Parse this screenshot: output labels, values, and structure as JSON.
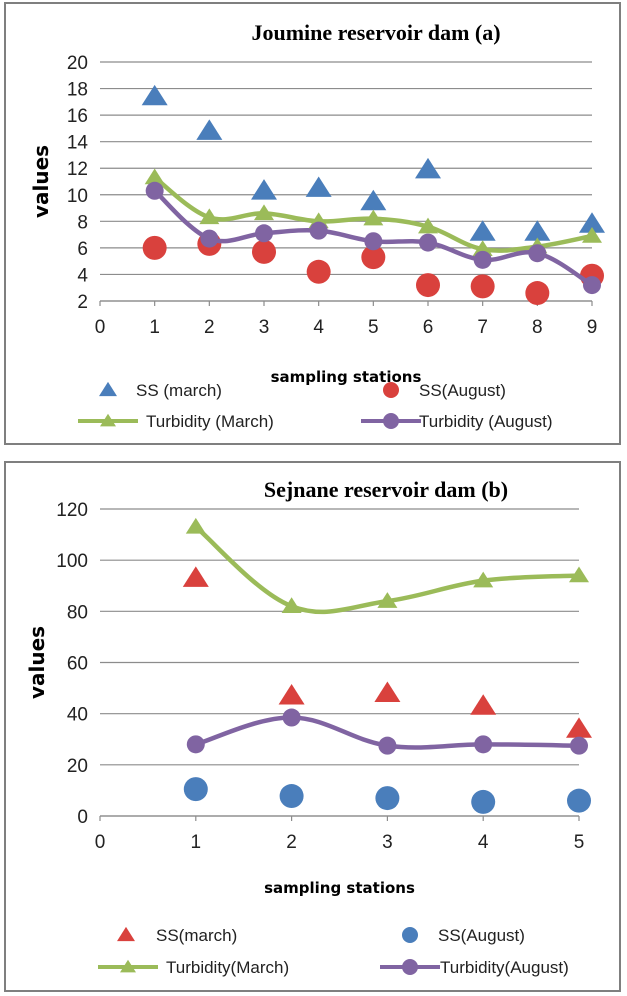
{
  "chart_data": [
    {
      "type": "scatter",
      "title": "Joumine reservoir dam (a)",
      "xlabel": "sampling stations",
      "ylabel": "values",
      "xlim": [
        0,
        9
      ],
      "ylim": [
        2,
        20
      ],
      "yticks": [
        2,
        4,
        6,
        8,
        10,
        12,
        14,
        16,
        18,
        20
      ],
      "xticks": [
        0,
        1,
        2,
        3,
        4,
        5,
        6,
        7,
        8,
        9
      ],
      "grid": "horizontal",
      "legend_position": "bottom",
      "x": [
        1,
        2,
        3,
        4,
        5,
        6,
        7,
        8,
        9
      ],
      "series": [
        {
          "name": "SS (march)",
          "kind": "markers",
          "marker": "triangle",
          "color": "#4a7ebb",
          "values": [
            17.4,
            14.8,
            10.3,
            10.5,
            9.5,
            11.9,
            7.2,
            7.2,
            7.8
          ]
        },
        {
          "name": "SS(August)",
          "kind": "markers",
          "marker": "circle",
          "color": "#d9413d",
          "values": [
            6.0,
            6.3,
            5.7,
            4.2,
            5.3,
            3.2,
            3.1,
            2.6,
            3.9
          ]
        },
        {
          "name": "Turbidity (March)",
          "kind": "line-markers",
          "marker": "triangle",
          "color": "#9bbb59",
          "values": [
            11.3,
            8.3,
            8.6,
            8.0,
            8.2,
            7.6,
            5.9,
            6.1,
            6.9
          ]
        },
        {
          "name": "Turbidity (August)",
          "kind": "line-markers",
          "marker": "circle",
          "color": "#8064a2",
          "values": [
            10.3,
            6.7,
            7.1,
            7.3,
            6.5,
            6.4,
            5.1,
            5.6,
            3.2
          ]
        }
      ]
    },
    {
      "type": "scatter",
      "title": "Sejnane reservoir dam (b)",
      "xlabel": "sampling stations",
      "ylabel": "values",
      "xlim": [
        0,
        5
      ],
      "ylim": [
        0,
        120
      ],
      "yticks": [
        0,
        20,
        40,
        60,
        80,
        100,
        120
      ],
      "xticks": [
        0,
        1,
        2,
        3,
        4,
        5
      ],
      "grid": "horizontal",
      "legend_position": "bottom",
      "x": [
        1,
        2,
        3,
        4,
        5
      ],
      "series": [
        {
          "name": "SS(march)",
          "kind": "markers",
          "marker": "triangle",
          "color": "#d9413d",
          "values": [
            93,
            47,
            48,
            43,
            34
          ]
        },
        {
          "name": "SS(August)",
          "kind": "markers",
          "marker": "circle",
          "color": "#4a7ebb",
          "values": [
            10.5,
            7.8,
            7,
            5.5,
            6
          ]
        },
        {
          "name": "Turbidity(March)",
          "kind": "line-markers",
          "marker": "triangle",
          "color": "#9bbb59",
          "values": [
            113,
            82,
            84,
            92,
            94
          ]
        },
        {
          "name": "Turbidity(August)",
          "kind": "line-markers",
          "marker": "circle",
          "color": "#8064a2",
          "values": [
            28,
            38.5,
            27.5,
            28,
            27.5
          ]
        }
      ]
    }
  ]
}
